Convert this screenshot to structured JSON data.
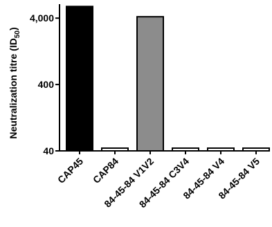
{
  "chart_data": {
    "type": "bar",
    "ylabel": "Neutralization titre (ID",
    "ylabel_sub": "50",
    "ylabel_close": ")",
    "yscale": "log",
    "ylim": [
      40,
      6500
    ],
    "yticks": [
      40,
      400,
      4000
    ],
    "ytick_labels": [
      "40",
      "400",
      "4,000"
    ],
    "categories": [
      "CAP45",
      "CAP84",
      "84-45-84 V1V2",
      "84-45-84 C3V4",
      "84-45-84 V4",
      "84-45-84 V5"
    ],
    "values": [
      6000,
      44,
      4200,
      44,
      44,
      44
    ],
    "bar_colors": [
      "#000000",
      "#ffffff",
      "#8c8c8c",
      "#ffffff",
      "#ffffff",
      "#ffffff"
    ],
    "grid": false,
    "legend": "none"
  }
}
